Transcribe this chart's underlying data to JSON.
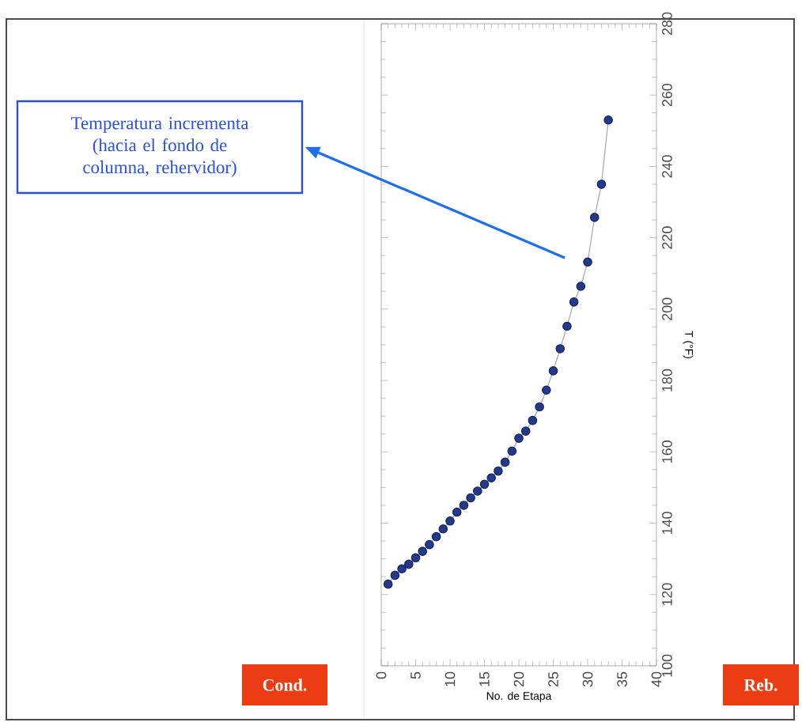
{
  "chart_data": {
    "type": "line",
    "xlabel": "No. de Etapa",
    "ylabel": "T (°F)",
    "x": [
      1,
      2,
      3,
      4,
      5,
      6,
      7,
      8,
      9,
      10,
      11,
      12,
      13,
      14,
      15,
      16,
      17,
      18,
      19,
      20,
      21,
      22,
      23,
      24,
      25,
      26,
      27,
      28,
      29,
      30,
      31,
      32,
      33
    ],
    "series": [
      {
        "color": "#1f3c8c",
        "values": [
          122.9,
          125.4,
          127.2,
          128.5,
          130.3,
          132.1,
          134.0,
          136.2,
          138.4,
          140.6,
          143.1,
          145.0,
          147.1,
          149.0,
          150.9,
          152.7,
          154.6,
          157.1,
          160.2,
          163.8,
          165.8,
          168.8,
          172.6,
          177.3,
          182.7,
          188.9,
          195.2,
          202.0,
          206.4,
          213.2,
          225.7,
          235.0,
          253.0
        ]
      }
    ],
    "xlim": [
      0,
      40
    ],
    "xticks": [
      0,
      5,
      10,
      15,
      20,
      25,
      30,
      35,
      40
    ],
    "ylim": [
      100,
      280
    ],
    "yticks": [
      100,
      120,
      140,
      160,
      180,
      200,
      220,
      240,
      260,
      280
    ],
    "marker": "circle",
    "grid": false,
    "annotations": [
      "Temperatura incrementa (hacia el fondo de columna, rehervidor)",
      "Cond.",
      "Reb."
    ]
  }
}
